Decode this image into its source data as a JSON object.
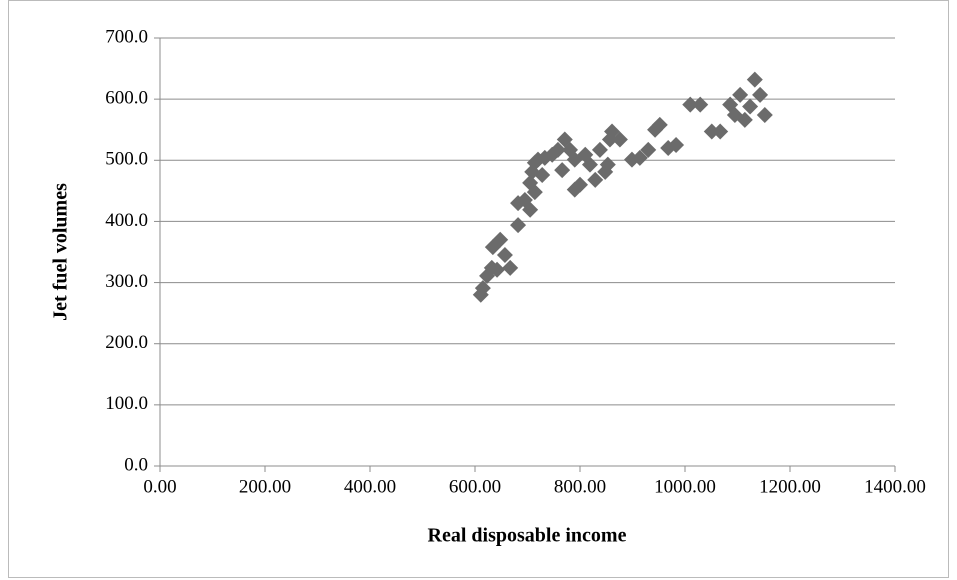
{
  "chart_data": {
    "type": "scatter",
    "x_label": "Real disposable income",
    "y_label": "Jet fuel volumes",
    "x": [
      611,
      615,
      623,
      632,
      642,
      634,
      648,
      657,
      667,
      682,
      682,
      695,
      705,
      705,
      709,
      714,
      714,
      720,
      728,
      733,
      747,
      758,
      766,
      771,
      781,
      790,
      790,
      800,
      810,
      819,
      829,
      838,
      848,
      853,
      857,
      861,
      876,
      899,
      914,
      930,
      943,
      952,
      968,
      983,
      1010,
      1029,
      1051,
      1067,
      1086,
      1095,
      1105,
      1114,
      1124,
      1133,
      1143,
      1152
    ],
    "values": [
      280,
      291,
      311,
      324,
      321,
      358,
      370,
      345,
      324,
      394,
      430,
      435,
      419,
      463,
      481,
      448,
      496,
      501,
      476,
      504,
      509,
      517,
      484,
      534,
      517,
      501,
      452,
      460,
      509,
      493,
      468,
      517,
      481,
      493,
      534,
      547,
      534,
      501,
      504,
      517,
      550,
      558,
      520,
      525,
      591,
      591,
      547,
      547,
      591,
      574,
      607,
      566,
      588,
      632,
      607,
      574
    ],
    "color": "#6b6b6b",
    "xlim": [
      0,
      1400
    ],
    "xticks": [
      {
        "value": 0,
        "label": "0.00"
      },
      {
        "value": 200,
        "label": "200.00"
      },
      {
        "value": 400,
        "label": "400.00"
      },
      {
        "value": 600,
        "label": "600.00"
      },
      {
        "value": 800,
        "label": "800.00"
      },
      {
        "value": 1000,
        "label": "1000.00"
      },
      {
        "value": 1200,
        "label": "1200.00"
      },
      {
        "value": 1400,
        "label": "1400.00"
      }
    ],
    "ylim": [
      0,
      700
    ],
    "yticks": [
      {
        "value": 0,
        "label": "0.0"
      },
      {
        "value": 100,
        "label": "100.0"
      },
      {
        "value": 200,
        "label": "200.0"
      },
      {
        "value": 300,
        "label": "300.0"
      },
      {
        "value": 400,
        "label": "400.0"
      },
      {
        "value": 500,
        "label": "500.0"
      },
      {
        "value": 600,
        "label": "600.0"
      },
      {
        "value": 700,
        "label": "700.0"
      }
    ],
    "grid": true
  }
}
